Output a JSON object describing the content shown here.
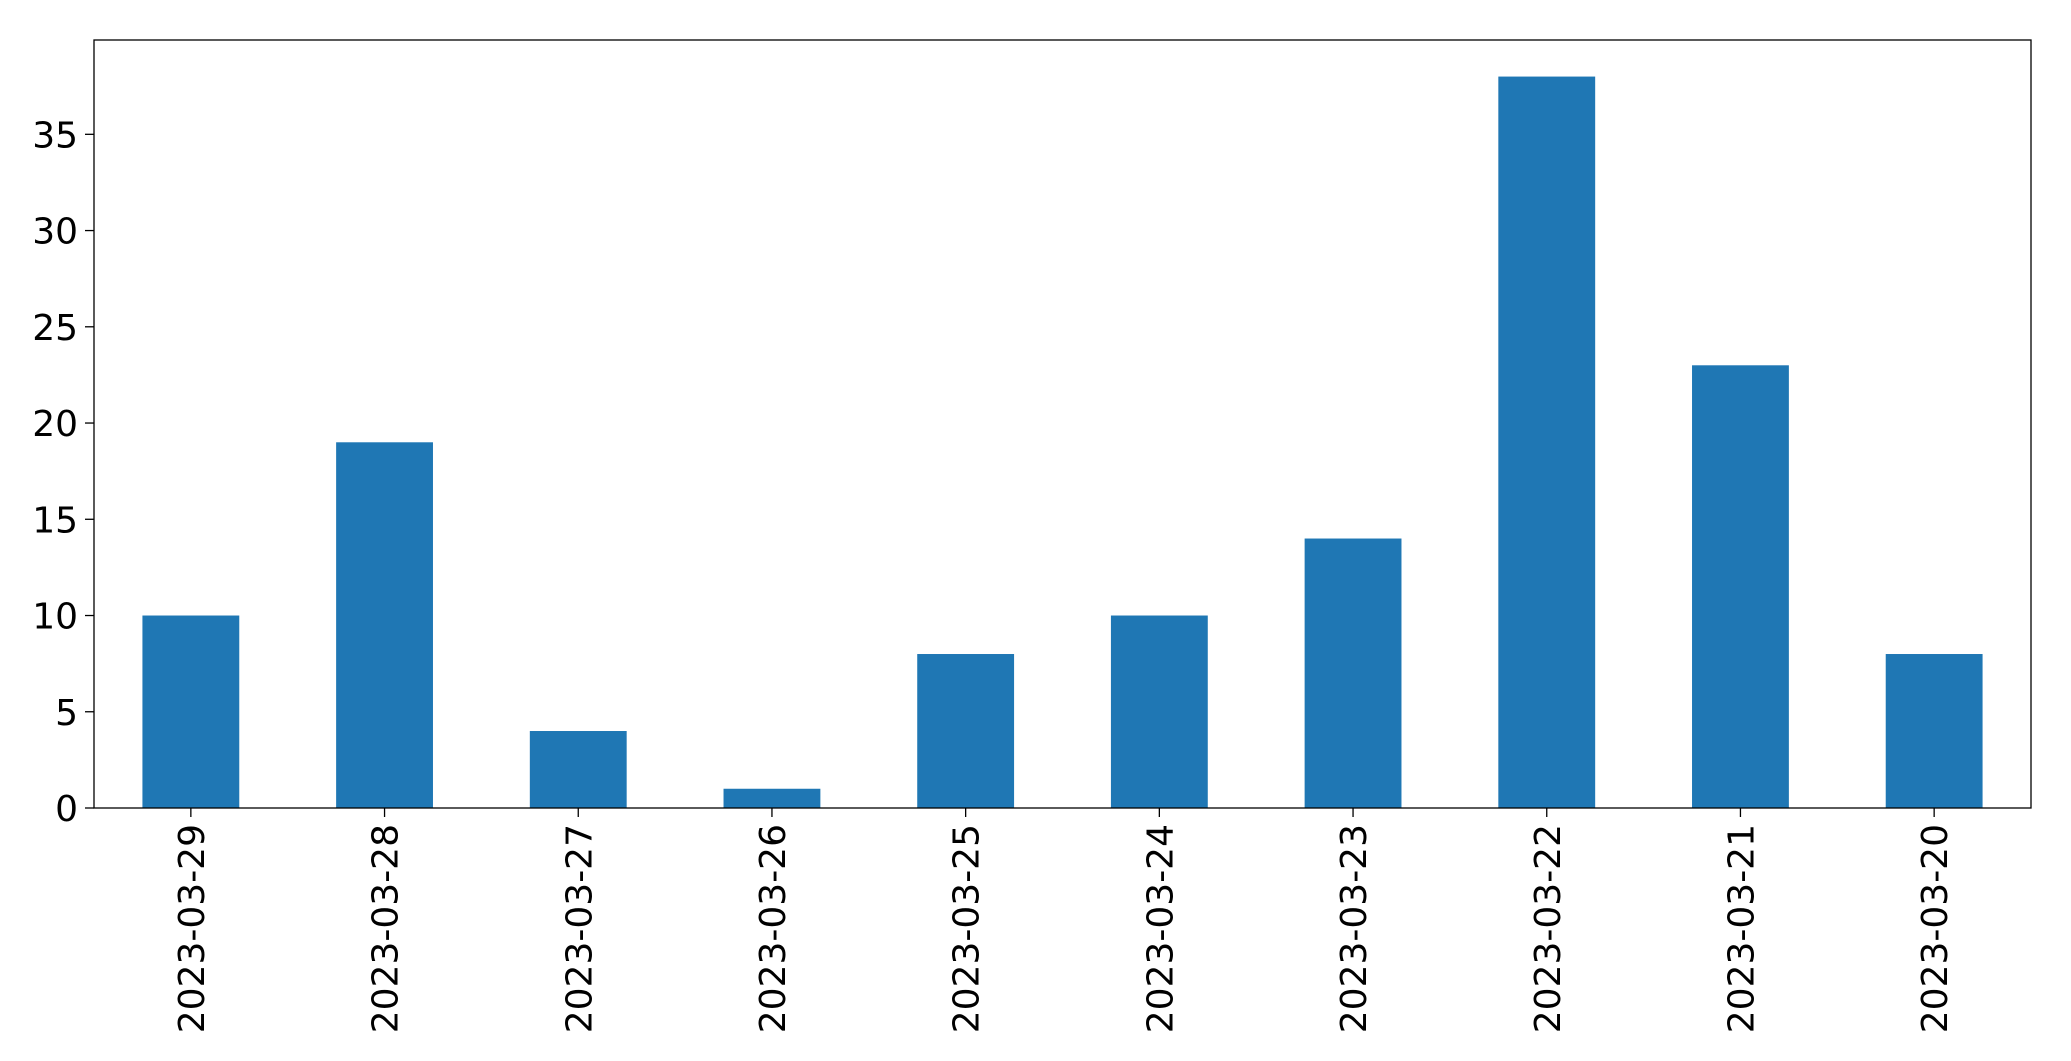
{
  "chart_data": {
    "type": "bar",
    "categories": [
      "2023-03-29",
      "2023-03-28",
      "2023-03-27",
      "2023-03-26",
      "2023-03-25",
      "2023-03-24",
      "2023-03-23",
      "2023-03-22",
      "2023-03-21",
      "2023-03-20"
    ],
    "values": [
      10,
      19,
      4,
      1,
      8,
      10,
      14,
      38,
      23,
      8
    ],
    "color": "#1f77b4",
    "ylim": [
      0,
      39.9
    ],
    "yticks": [
      0,
      5,
      10,
      15,
      20,
      25,
      30,
      35
    ],
    "grid": false
  }
}
